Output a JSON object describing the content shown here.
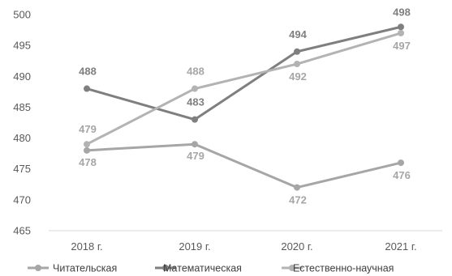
{
  "chart_data": {
    "type": "line",
    "title": "",
    "xlabel": "",
    "ylabel": "",
    "categories": [
      "2018 г.",
      "2019 г.",
      "2020 г.",
      "2021 г."
    ],
    "ylim": [
      465,
      500
    ],
    "yticks": [
      465,
      470,
      475,
      480,
      485,
      490,
      495,
      500
    ],
    "ytick_labels": [
      "465",
      "470",
      "475",
      "480",
      "485",
      "490",
      "495",
      "500"
    ],
    "grid": false,
    "legend": "bottom",
    "series": [
      {
        "name": "Читательская",
        "values": [
          478,
          479,
          472,
          476
        ],
        "labels": [
          "478",
          "479",
          "472",
          "476"
        ],
        "color": "#a6a6a6",
        "label_color": "#a6a6a6",
        "label_pos": "below"
      },
      {
        "name": "Математическая",
        "values": [
          488,
          483,
          494,
          498
        ],
        "labels": [
          "488",
          "483",
          "494",
          "498"
        ],
        "color": "#7f7f7f",
        "label_color": "#7f7f7f",
        "label_pos": "above"
      },
      {
        "name": "Естественно-научная",
        "values": [
          479,
          488,
          492,
          497
        ],
        "labels": [
          "479",
          "488",
          "492",
          "497"
        ],
        "color": "#b3b3b3",
        "label_color": "#a6a6a6",
        "label_pos": "mixed"
      }
    ]
  }
}
